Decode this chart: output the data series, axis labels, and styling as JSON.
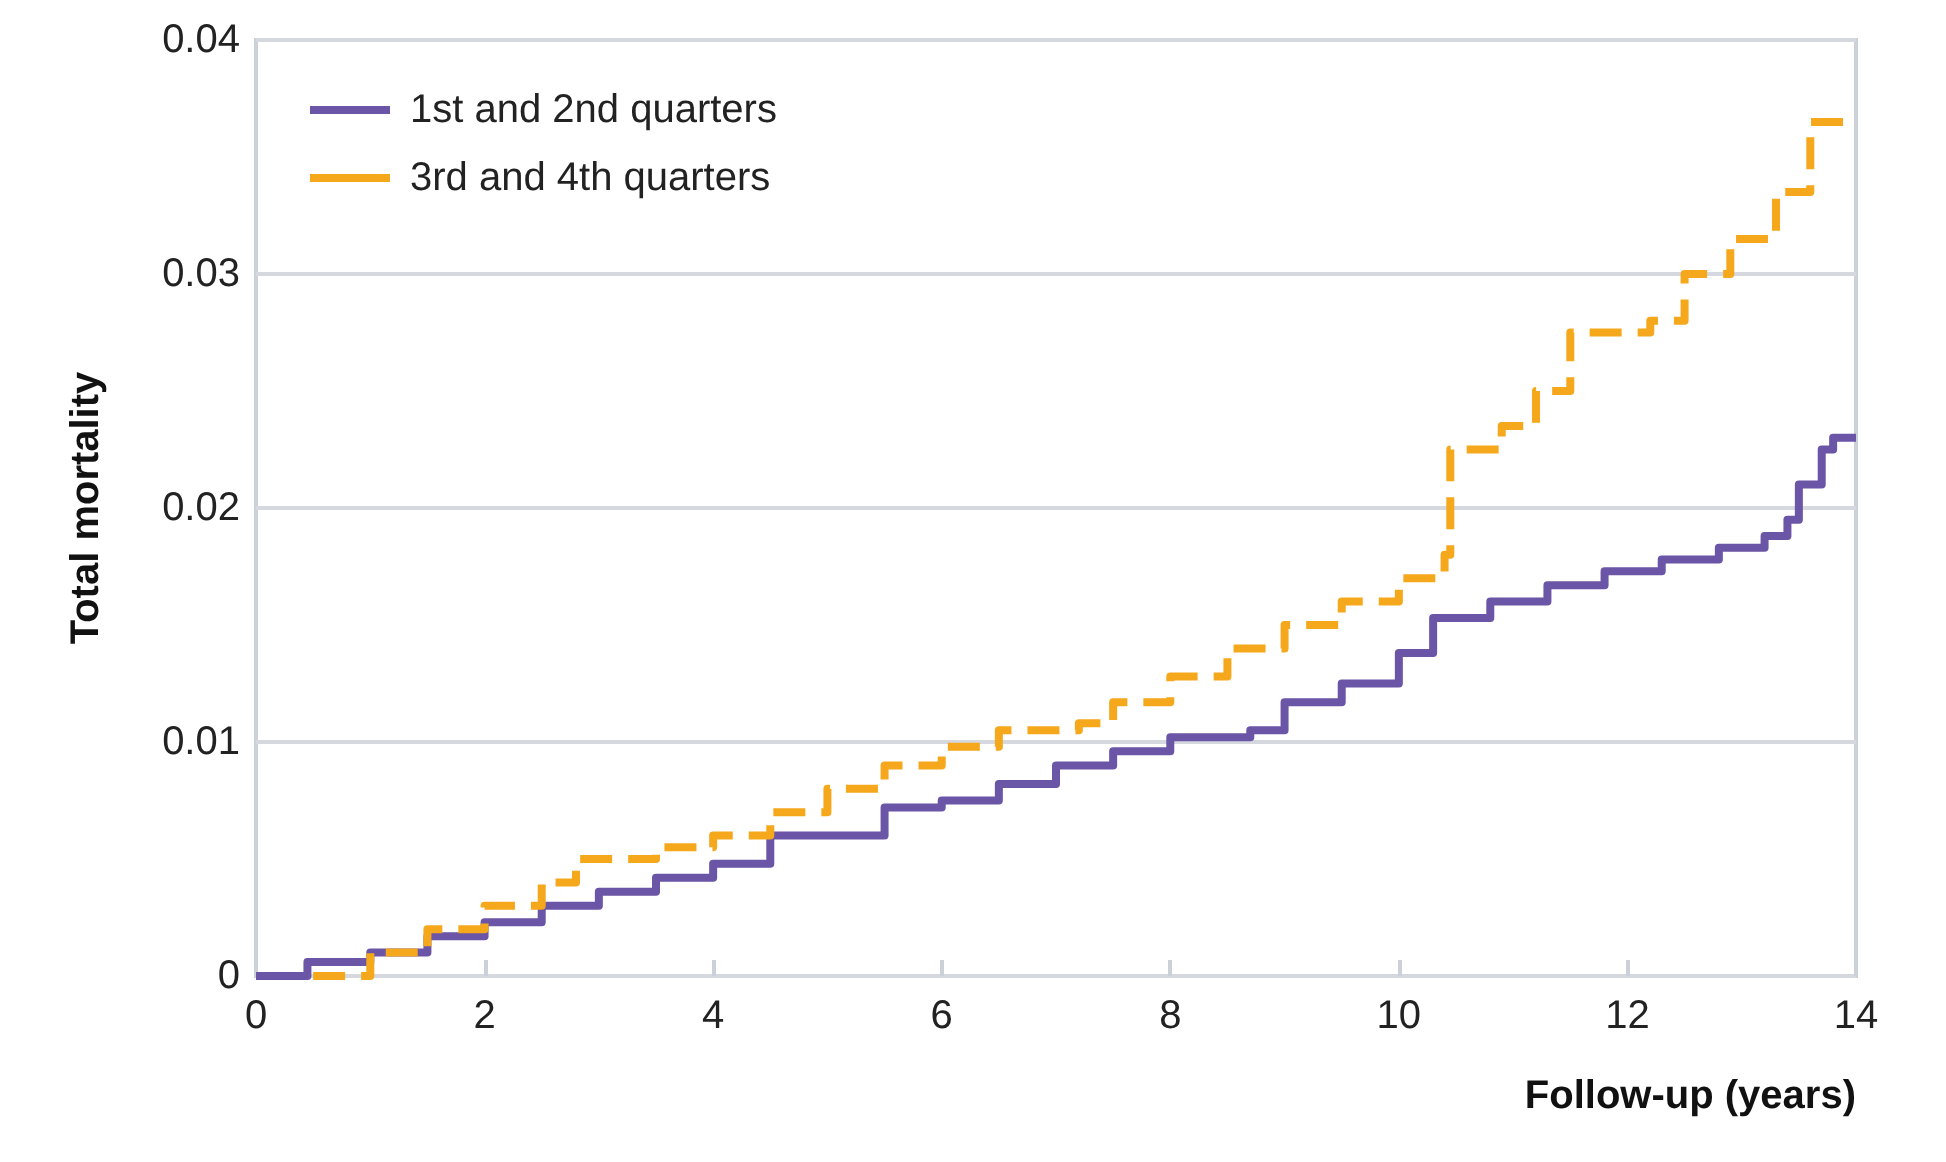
{
  "chart_data": {
    "type": "step",
    "xlabel": "Follow-up (years)",
    "ylabel": "Total mortality",
    "xlim": [
      0,
      14
    ],
    "xticks": [
      0,
      2,
      4,
      6,
      8,
      10,
      12,
      14
    ],
    "ylim": [
      0,
      0.04
    ],
    "yticks": [
      {
        "value": 0,
        "label": "0"
      },
      0.01,
      0.02,
      0.03,
      0.04
    ],
    "grid": "y",
    "legend": "top left",
    "marker": "none",
    "series": [
      {
        "name": "1st and 2nd quarters",
        "color": "#6a55a7",
        "line_style": "solid",
        "x": [
          0,
          0.45,
          1,
          1.5,
          2,
          2.5,
          3,
          3.5,
          4,
          4.5,
          5,
          5.5,
          6,
          6.5,
          7,
          7.5,
          8,
          8.7,
          9,
          9.5,
          10,
          10.3,
          10.8,
          11.3,
          11.8,
          12.3,
          12.8,
          13.2,
          13.4,
          13.5,
          13.7,
          13.8,
          14
        ],
        "values": [
          0,
          0.0006,
          0.001,
          0.0017,
          0.0023,
          0.003,
          0.0036,
          0.0042,
          0.0048,
          0.006,
          0.006,
          0.0072,
          0.0075,
          0.0082,
          0.009,
          0.0096,
          0.0102,
          0.0105,
          0.0117,
          0.0125,
          0.0138,
          0.0153,
          0.016,
          0.0167,
          0.0173,
          0.0178,
          0.0183,
          0.0188,
          0.0195,
          0.021,
          0.0225,
          0.023,
          0.023
        ]
      },
      {
        "name": "3rd and 4th quarters",
        "color": "#f5a81c",
        "line_style": "dashed",
        "x": [
          0.5,
          1,
          1.5,
          2,
          2.5,
          2.8,
          3.5,
          4,
          4.5,
          5,
          5.5,
          6,
          6.5,
          7.2,
          7.5,
          8,
          8.5,
          9,
          9.5,
          10,
          10.4,
          10.45,
          10.9,
          11.2,
          11.5,
          12.2,
          12.5,
          12.9,
          13.3,
          13.6,
          14
        ],
        "values": [
          0,
          0.001,
          0.002,
          0.003,
          0.004,
          0.005,
          0.0055,
          0.006,
          0.007,
          0.008,
          0.009,
          0.0098,
          0.0105,
          0.0108,
          0.0117,
          0.0128,
          0.014,
          0.015,
          0.016,
          0.017,
          0.018,
          0.0225,
          0.0235,
          0.025,
          0.0275,
          0.028,
          0.03,
          0.0315,
          0.0335,
          0.0365,
          0.0365
        ]
      }
    ]
  }
}
